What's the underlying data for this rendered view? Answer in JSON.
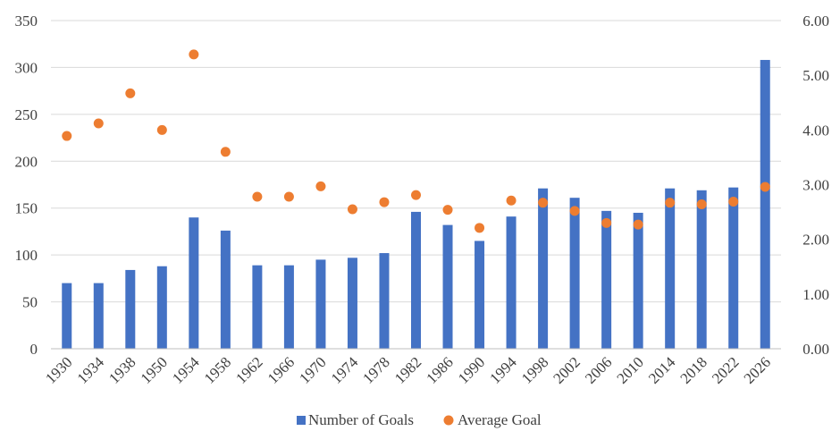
{
  "chart_data": {
    "type": "bar",
    "categories": [
      "1930",
      "1934",
      "1938",
      "1950",
      "1954",
      "1958",
      "1962",
      "1966",
      "1970",
      "1974",
      "1978",
      "1982",
      "1986",
      "1990",
      "1994",
      "1998",
      "2002",
      "2006",
      "2010",
      "2014",
      "2018",
      "2022",
      "2026"
    ],
    "series": [
      {
        "name": "Number of Goals",
        "type": "bar",
        "axis": "left",
        "color": "#4472C4",
        "values": [
          70,
          70,
          84,
          88,
          140,
          126,
          89,
          89,
          95,
          97,
          102,
          146,
          132,
          115,
          141,
          171,
          161,
          147,
          145,
          171,
          169,
          172,
          308
        ]
      },
      {
        "name": "Average Goal",
        "type": "scatter",
        "axis": "right",
        "color": "#ED7D31",
        "values": [
          3.89,
          4.12,
          4.67,
          4.0,
          5.38,
          3.6,
          2.78,
          2.78,
          2.97,
          2.55,
          2.68,
          2.81,
          2.54,
          2.21,
          2.71,
          2.67,
          2.52,
          2.3,
          2.27,
          2.67,
          2.64,
          2.69,
          2.96
        ]
      }
    ],
    "y_left": {
      "min": 0,
      "max": 350,
      "ticks": [
        "0",
        "50",
        "100",
        "150",
        "200",
        "250",
        "300",
        "350"
      ]
    },
    "y_right": {
      "min": 0,
      "max": 6,
      "ticks": [
        "0.00",
        "1.00",
        "2.00",
        "3.00",
        "4.00",
        "5.00",
        "6.00"
      ]
    },
    "grid": true,
    "legend_position": "bottom"
  }
}
